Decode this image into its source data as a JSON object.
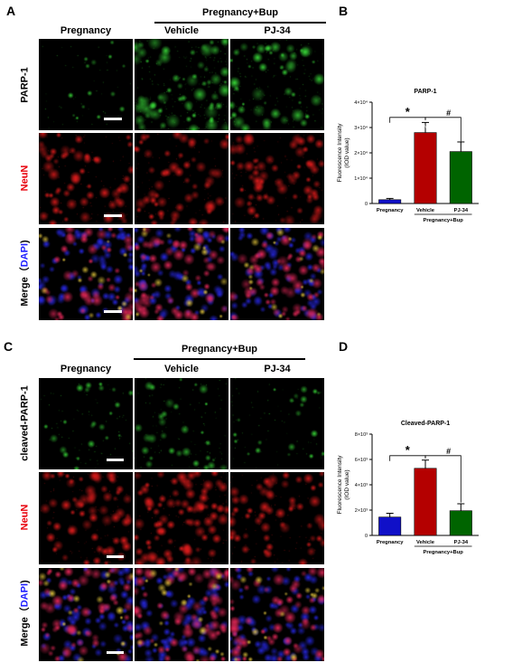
{
  "panels": {
    "A": {
      "label": "A",
      "group_header": "Pregnancy+Bup",
      "columns": [
        "Pregnancy",
        "Vehicle",
        "PJ-34"
      ],
      "rows": [
        {
          "label": "PARP-1",
          "color": "#000000"
        },
        {
          "label": "NeuN",
          "color": "#e8000b"
        },
        {
          "label_prefix": "Merge",
          "label_paren_open": "（",
          "label_inner": "DAPI",
          "label_paren_close": ")",
          "inner_color": "#1f1fff"
        }
      ]
    },
    "B": {
      "label": "B"
    },
    "C": {
      "label": "C",
      "group_header": "Pregnancy+Bup",
      "columns": [
        "Pregnancy",
        "Vehicle",
        "PJ-34"
      ],
      "rows": [
        {
          "label": "cleaved-PARP-1",
          "color": "#000000"
        },
        {
          "label": "NeuN",
          "color": "#e8000b"
        },
        {
          "label_prefix": "Merge",
          "label_paren_open": "（",
          "label_inner": "DAPI",
          "label_paren_close": ")",
          "inner_color": "#1f1fff"
        }
      ]
    },
    "D": {
      "label": "D"
    }
  },
  "chart_data": [
    {
      "type": "bar",
      "panel": "B",
      "title": "PARP-1",
      "ylabel_line1": "Fluorescence Intensity",
      "ylabel_line2": "(IOD value)",
      "categories": [
        "Pregnancy",
        "Vehicle",
        "PJ-34"
      ],
      "group_label": "Pregnancy+Bup",
      "values": [
        1500,
        28000,
        20500
      ],
      "errors": [
        500,
        4000,
        3800
      ],
      "colors": [
        "#1010c8",
        "#b40000",
        "#006400"
      ],
      "ylim": [
        0,
        40000
      ],
      "yticks": [
        0,
        10000,
        20000,
        30000,
        40000
      ],
      "ytick_labels": [
        "0",
        "1×10⁴",
        "2×10⁴",
        "3×10⁴",
        "4×10⁴"
      ],
      "annotations": {
        "star": "*",
        "hash": "#",
        "small_hash": "#"
      }
    },
    {
      "type": "bar",
      "panel": "D",
      "title": "Cleaved-PARP-1",
      "ylabel_line1": "Fluorescence Intensity",
      "ylabel_line2": "(IOD value)",
      "categories": [
        "Pregnancy",
        "Vehicle",
        "PJ-34"
      ],
      "group_label": "Pregnancy+Bup",
      "values": [
        1450,
        5300,
        1950
      ],
      "errors": [
        300,
        650,
        550
      ],
      "colors": [
        "#1010c8",
        "#b40000",
        "#006400"
      ],
      "ylim": [
        0,
        8000
      ],
      "yticks": [
        0,
        2000,
        4000,
        6000,
        8000
      ],
      "ytick_labels": [
        "0",
        "2×10³",
        "4×10³",
        "6×10³",
        "8×10³"
      ],
      "annotations": {
        "star": "*",
        "hash": "#"
      }
    }
  ]
}
